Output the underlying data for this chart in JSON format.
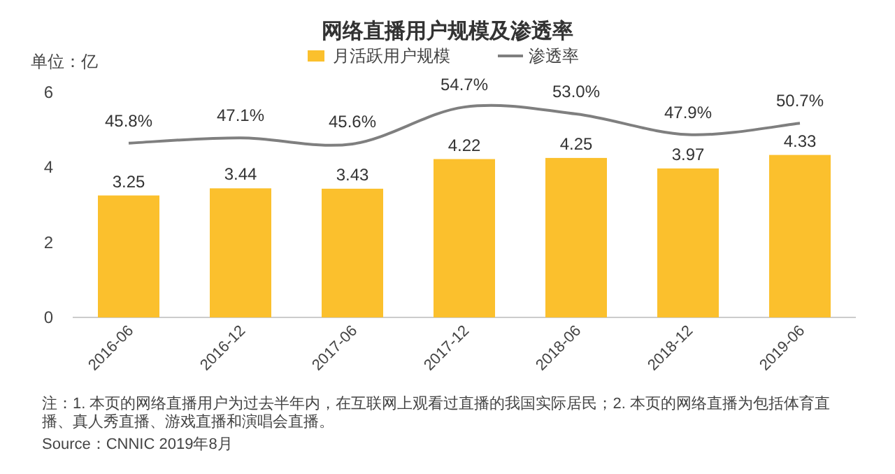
{
  "chart_data": {
    "type": "bar",
    "title": "网络直播用户规模及渗透率",
    "ylabel": "单位：亿",
    "categories": [
      "2016-06",
      "2016-12",
      "2017-06",
      "2017-12",
      "2018-06",
      "2018-12",
      "2019-06"
    ],
    "series": [
      {
        "name": "月活跃用户规模",
        "color": "#fbc02d",
        "values": [
          3.25,
          3.44,
          3.43,
          4.22,
          4.25,
          3.97,
          4.33
        ],
        "value_labels": [
          "3.25",
          "3.44",
          "3.43",
          "4.22",
          "4.25",
          "3.97",
          "4.33"
        ]
      },
      {
        "name": "渗透率",
        "type": "line",
        "axis": "y2",
        "color": "#7f7f7f",
        "values": [
          45.8,
          47.1,
          45.6,
          54.7,
          53.0,
          47.9,
          50.7
        ],
        "value_labels": [
          "45.8%",
          "47.1%",
          "45.6%",
          "54.7%",
          "53.0%",
          "47.9%",
          "50.7%"
        ]
      }
    ],
    "ylim": [
      0,
      6
    ],
    "yticks": [
      0,
      2,
      4,
      6
    ],
    "legend": "top",
    "grid": false,
    "marker": "none",
    "line_style": "solid",
    "annotations": [
      "注：1. 本页的网络直播用户为过去半年内，在互联网上观看过直播的我国实际居民；2. 本页的网络直播为包括体育直播、真人秀直播、游戏直播和演唱会直播。",
      "Source：CNNIC 2019年8月"
    ]
  }
}
